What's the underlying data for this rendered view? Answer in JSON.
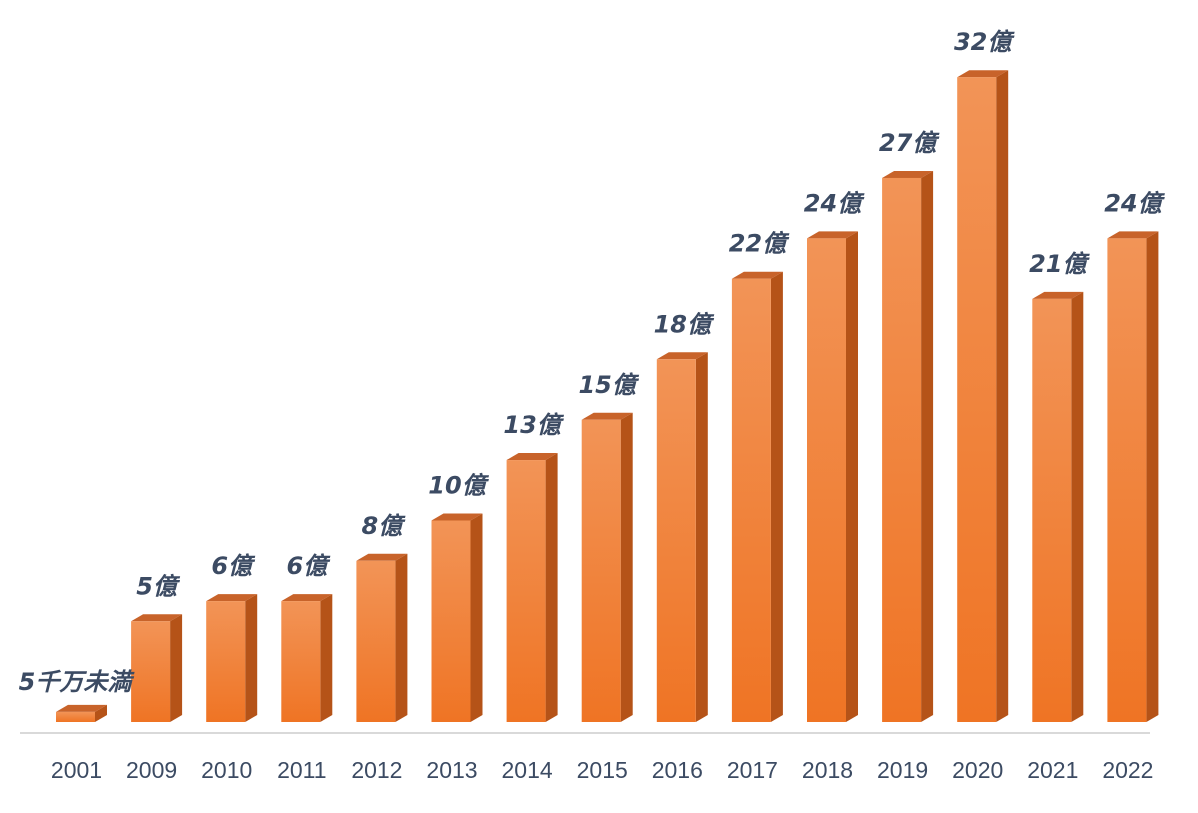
{
  "chart_data": {
    "type": "bar",
    "title": "",
    "xlabel": "",
    "ylabel": "",
    "ylim": [
      0,
      32
    ],
    "grid": false,
    "legend": "none",
    "categories": [
      "2001",
      "2009",
      "2010",
      "2011",
      "2012",
      "2013",
      "2014",
      "2015",
      "2016",
      "2017",
      "2018",
      "2019",
      "2020",
      "2021",
      "2022"
    ],
    "values": [
      0.5,
      5,
      6,
      6,
      8,
      10,
      13,
      15,
      18,
      22,
      24,
      27,
      32,
      21,
      24
    ],
    "data_labels": [
      "5千万未満",
      "5億",
      "6億",
      "6億",
      "8億",
      "10億",
      "13億",
      "15億",
      "18億",
      "22億",
      "24億",
      "27億",
      "32億",
      "21億",
      "24億"
    ]
  },
  "colors": {
    "bar_front_top": "#f29457",
    "bar_front_bottom": "#ef7424",
    "bar_side": "#b55318",
    "bar_top": "#c8632a",
    "label_text": "#3c4b63",
    "axis_line": "#d9d9d9"
  }
}
